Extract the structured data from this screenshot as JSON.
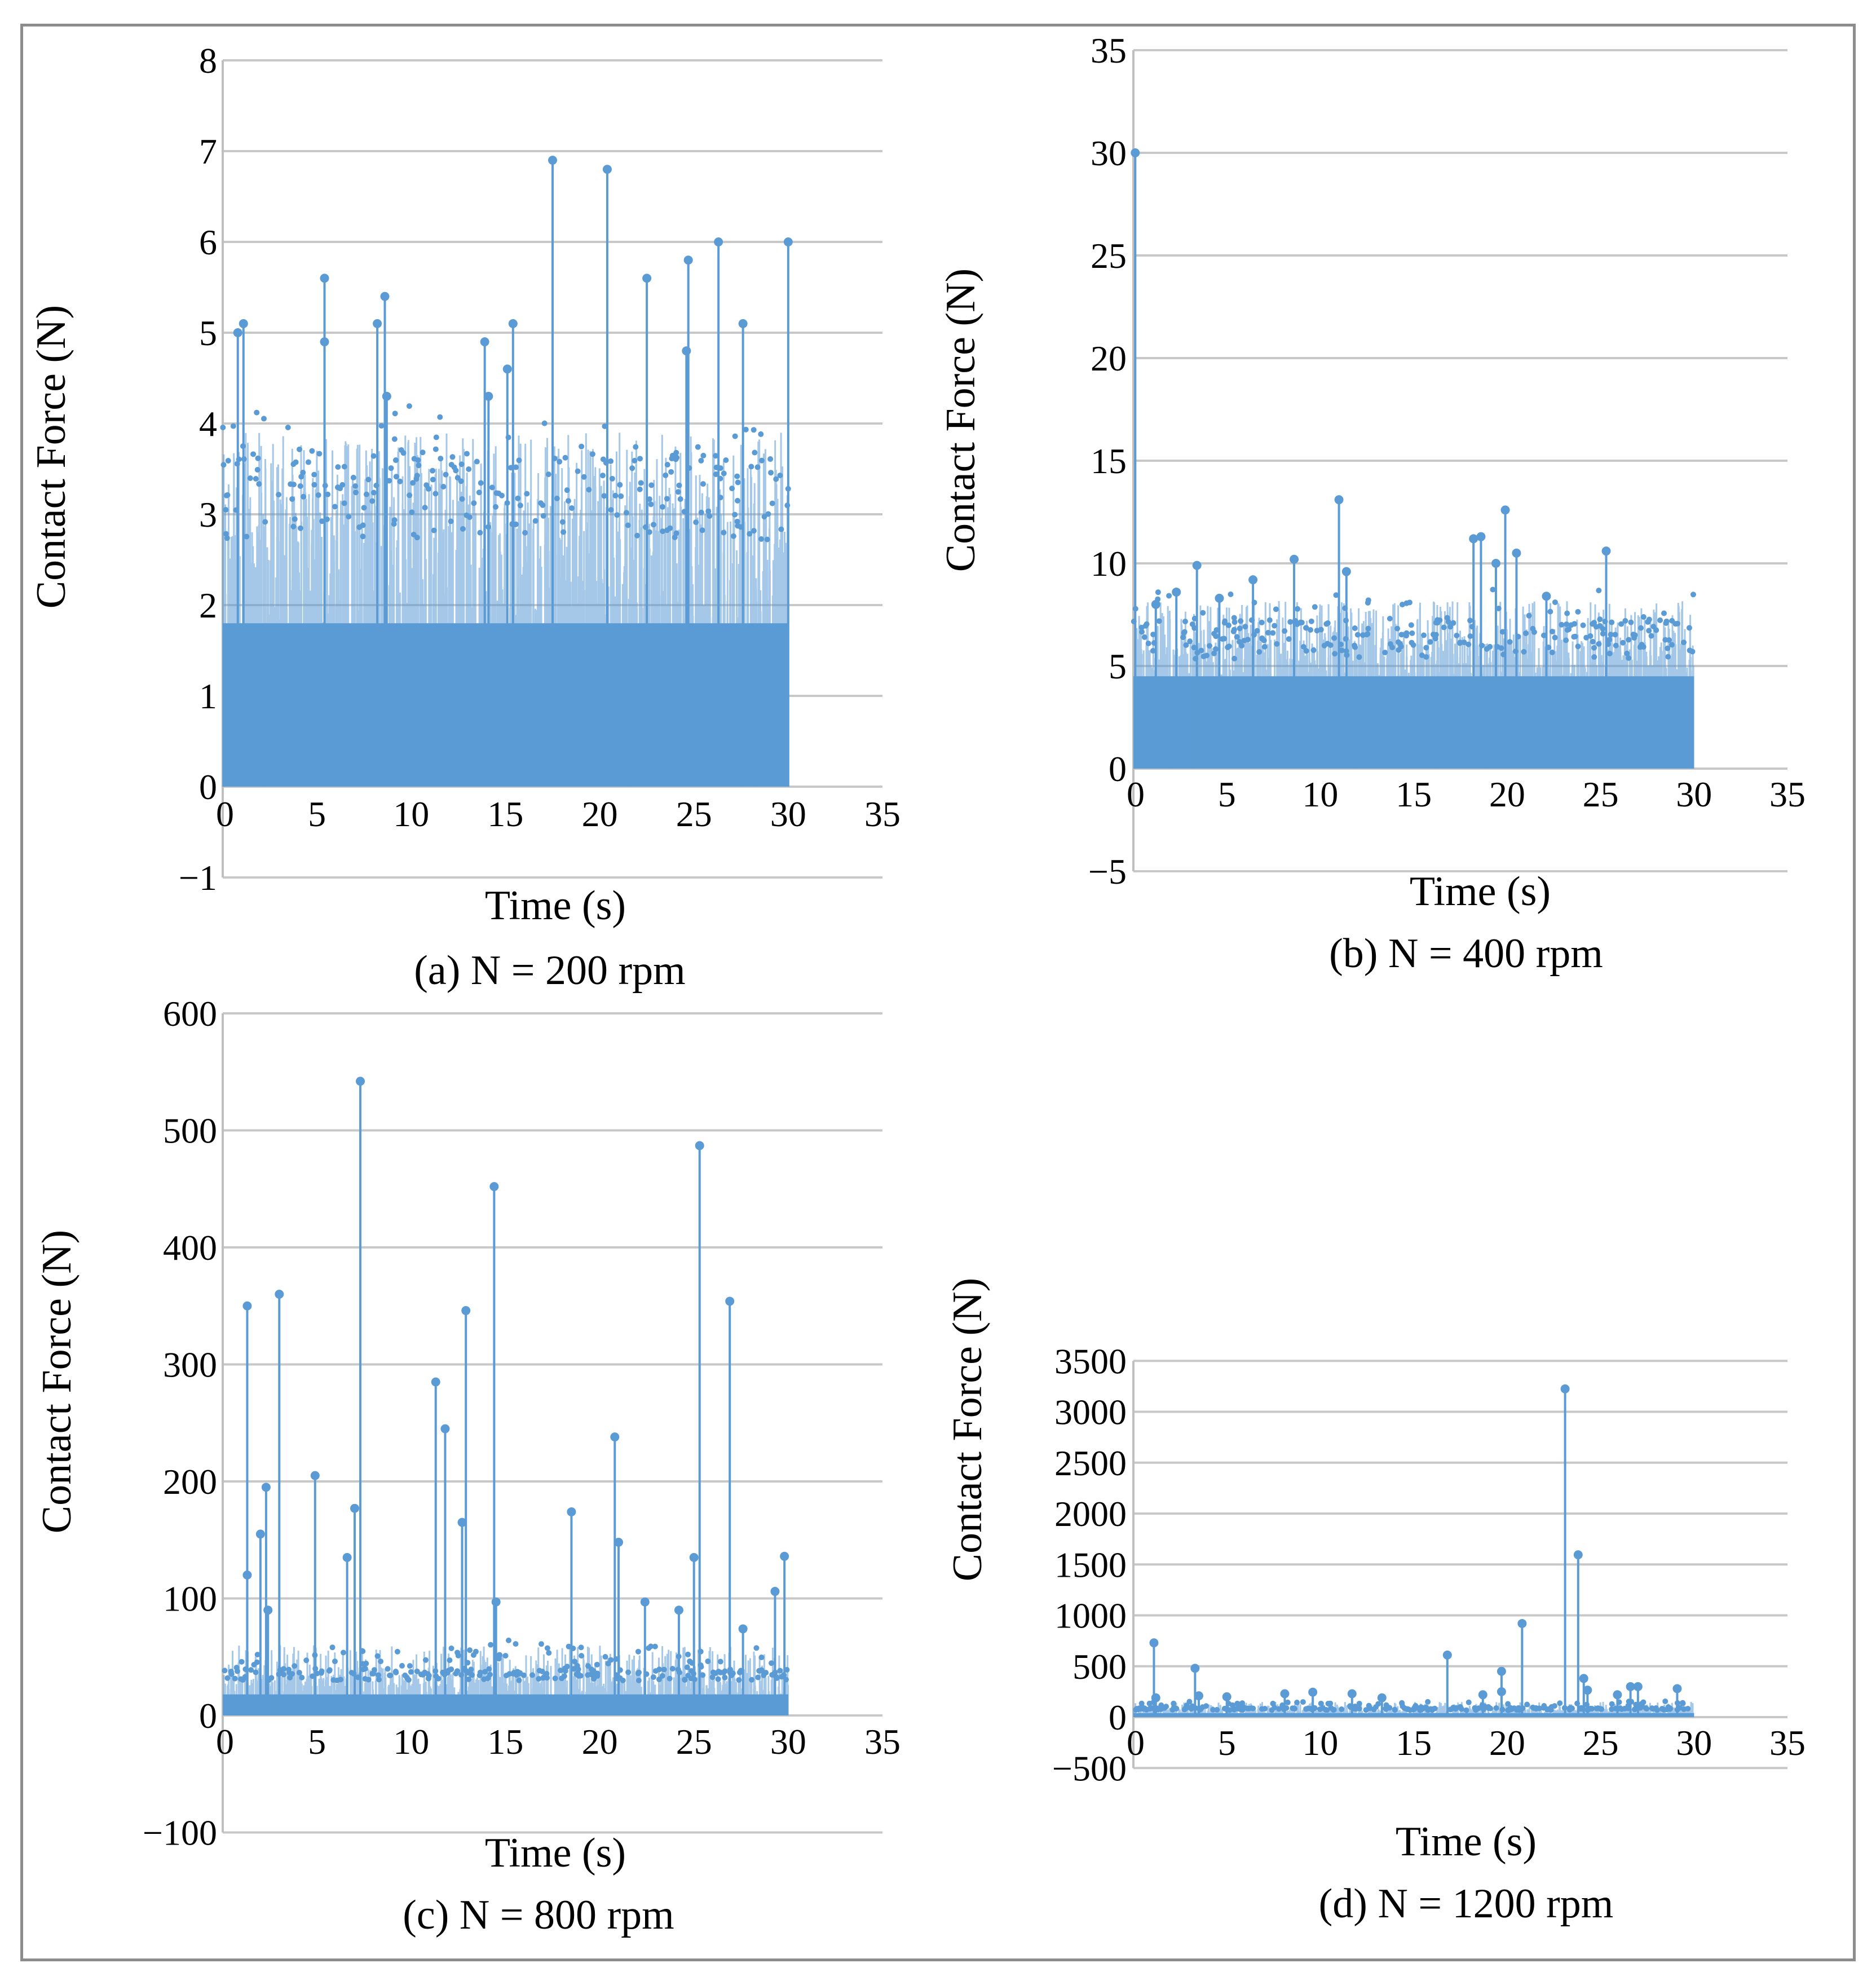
{
  "figure": {
    "description_note": ""
  },
  "colors": {
    "series": "#5b9bd5",
    "grid": "#c8c8c8",
    "frame": "#8c8c8c"
  },
  "chart_data": [
    {
      "id": "a",
      "type": "scatter",
      "title": "(a) N = 200 rpm",
      "xlabel": "Time (s)",
      "ylabel": "Contact Force (N)",
      "xlim": [
        0,
        35
      ],
      "ylim": [
        -1,
        8
      ],
      "xticks": [
        0,
        5,
        10,
        15,
        20,
        25,
        30,
        35
      ],
      "yticks": [
        -1,
        0,
        1,
        2,
        3,
        4,
        5,
        6,
        7,
        8
      ],
      "xtick_labels": [
        "0",
        "5",
        "10",
        "15",
        "20",
        "25",
        "30",
        "35"
      ],
      "ytick_labels": [
        "−1",
        "0",
        "1",
        "2",
        "3",
        "4",
        "5",
        "6",
        "7",
        "8"
      ],
      "dense_band": {
        "x_range": [
          0,
          30
        ],
        "band_top": 1.8,
        "dense_upper": 3.2,
        "sparse_upper": 3.9
      },
      "peaks": [
        {
          "x": 0.8,
          "y": 5.0
        },
        {
          "x": 1.1,
          "y": 5.1
        },
        {
          "x": 5.4,
          "y": 5.6
        },
        {
          "x": 5.4,
          "y": 4.9
        },
        {
          "x": 8.2,
          "y": 5.1
        },
        {
          "x": 8.6,
          "y": 5.4
        },
        {
          "x": 8.7,
          "y": 4.3
        },
        {
          "x": 13.9,
          "y": 4.9
        },
        {
          "x": 14.1,
          "y": 4.3
        },
        {
          "x": 15.1,
          "y": 4.6
        },
        {
          "x": 15.4,
          "y": 5.1
        },
        {
          "x": 17.5,
          "y": 6.9
        },
        {
          "x": 20.4,
          "y": 6.8
        },
        {
          "x": 22.5,
          "y": 5.6
        },
        {
          "x": 24.7,
          "y": 5.8
        },
        {
          "x": 24.6,
          "y": 4.8
        },
        {
          "x": 26.3,
          "y": 6.0
        },
        {
          "x": 27.6,
          "y": 5.1
        },
        {
          "x": 30.0,
          "y": 6.0
        }
      ]
    },
    {
      "id": "b",
      "type": "scatter",
      "title": "(b) N = 400 rpm",
      "xlabel": "Time (s)",
      "ylabel": "Contact Force (N)",
      "xlim": [
        0,
        35
      ],
      "ylim": [
        -5,
        35
      ],
      "xticks": [
        0,
        5,
        10,
        15,
        20,
        25,
        30,
        35
      ],
      "yticks": [
        -5,
        0,
        5,
        10,
        15,
        20,
        25,
        30,
        35
      ],
      "xtick_labels": [
        "0",
        "5",
        "10",
        "15",
        "20",
        "25",
        "30",
        "35"
      ],
      "ytick_labels": [
        "−5",
        "0",
        "5",
        "10",
        "15",
        "20",
        "25",
        "30",
        "35"
      ],
      "dense_band": {
        "x_range": [
          0,
          30
        ],
        "band_top": 4.5,
        "dense_upper": 6.3,
        "sparse_upper": 8.2
      },
      "peaks": [
        {
          "x": 0.1,
          "y": 30.0
        },
        {
          "x": 1.2,
          "y": 8.0
        },
        {
          "x": 2.3,
          "y": 8.6
        },
        {
          "x": 3.4,
          "y": 9.9
        },
        {
          "x": 4.6,
          "y": 8.3
        },
        {
          "x": 6.4,
          "y": 9.2
        },
        {
          "x": 8.6,
          "y": 10.2
        },
        {
          "x": 11.0,
          "y": 13.1
        },
        {
          "x": 11.4,
          "y": 9.6
        },
        {
          "x": 18.2,
          "y": 11.2
        },
        {
          "x": 18.6,
          "y": 11.3
        },
        {
          "x": 19.4,
          "y": 10.0
        },
        {
          "x": 19.9,
          "y": 12.6
        },
        {
          "x": 20.5,
          "y": 10.5
        },
        {
          "x": 25.3,
          "y": 10.6
        },
        {
          "x": 22.1,
          "y": 8.4
        }
      ]
    },
    {
      "id": "c",
      "type": "scatter",
      "title": "(c) N = 800 rpm",
      "xlabel": "Time (s)",
      "ylabel": "Contact Force (N)",
      "xlim": [
        0,
        35
      ],
      "ylim": [
        -100,
        600
      ],
      "xticks": [
        0,
        5,
        10,
        15,
        20,
        25,
        30,
        35
      ],
      "yticks": [
        -100,
        0,
        100,
        200,
        300,
        400,
        500,
        600
      ],
      "xtick_labels": [
        "0",
        "5",
        "10",
        "15",
        "20",
        "25",
        "30",
        "35"
      ],
      "ytick_labels": [
        "−100",
        "0",
        "100",
        "200",
        "300",
        "400",
        "500",
        "600"
      ],
      "dense_band": {
        "x_range": [
          0,
          30
        ],
        "band_top": 18,
        "dense_upper": 35,
        "sparse_upper": 60
      },
      "peaks": [
        {
          "x": 1.3,
          "y": 350
        },
        {
          "x": 1.3,
          "y": 120
        },
        {
          "x": 2.0,
          "y": 155
        },
        {
          "x": 2.3,
          "y": 195
        },
        {
          "x": 2.4,
          "y": 90
        },
        {
          "x": 3.0,
          "y": 360
        },
        {
          "x": 4.9,
          "y": 205
        },
        {
          "x": 6.6,
          "y": 135
        },
        {
          "x": 7.0,
          "y": 177
        },
        {
          "x": 7.3,
          "y": 542
        },
        {
          "x": 11.3,
          "y": 285
        },
        {
          "x": 11.8,
          "y": 245
        },
        {
          "x": 12.7,
          "y": 165
        },
        {
          "x": 12.9,
          "y": 346
        },
        {
          "x": 14.4,
          "y": 452
        },
        {
          "x": 14.5,
          "y": 97
        },
        {
          "x": 18.5,
          "y": 174
        },
        {
          "x": 20.8,
          "y": 238
        },
        {
          "x": 21.0,
          "y": 148
        },
        {
          "x": 22.4,
          "y": 97
        },
        {
          "x": 24.2,
          "y": 90
        },
        {
          "x": 25.0,
          "y": 135
        },
        {
          "x": 25.3,
          "y": 487
        },
        {
          "x": 26.9,
          "y": 354
        },
        {
          "x": 27.6,
          "y": 74
        },
        {
          "x": 29.3,
          "y": 106
        },
        {
          "x": 29.8,
          "y": 136
        }
      ]
    },
    {
      "id": "d",
      "type": "scatter",
      "title": "(d) N = 1200 rpm",
      "xlabel": "Time (s)",
      "ylabel": "Contact Force (N)",
      "xlim": [
        0,
        35
      ],
      "ylim": [
        -500,
        3500
      ],
      "xticks": [
        0,
        5,
        10,
        15,
        20,
        25,
        30,
        35
      ],
      "yticks": [
        -500,
        0,
        500,
        1000,
        1500,
        2000,
        2500,
        3000,
        3500
      ],
      "xtick_labels": [
        "0",
        "5",
        "10",
        "15",
        "20",
        "25",
        "30",
        "35"
      ],
      "ytick_labels": [
        "−500",
        "0",
        "500",
        "1000",
        "1500",
        "2000",
        "2500",
        "3000",
        "3500"
      ],
      "dense_band": {
        "x_range": [
          0,
          30
        ],
        "band_top": 40,
        "dense_upper": 80,
        "sparse_upper": 150
      },
      "peaks": [
        {
          "x": 1.1,
          "y": 730
        },
        {
          "x": 1.2,
          "y": 190
        },
        {
          "x": 3.3,
          "y": 480
        },
        {
          "x": 3.5,
          "y": 210
        },
        {
          "x": 5.0,
          "y": 200
        },
        {
          "x": 8.1,
          "y": 230
        },
        {
          "x": 9.6,
          "y": 245
        },
        {
          "x": 11.7,
          "y": 230
        },
        {
          "x": 13.3,
          "y": 190
        },
        {
          "x": 16.8,
          "y": 610
        },
        {
          "x": 18.7,
          "y": 220
        },
        {
          "x": 19.7,
          "y": 450
        },
        {
          "x": 19.7,
          "y": 250
        },
        {
          "x": 20.8,
          "y": 920
        },
        {
          "x": 23.1,
          "y": 3225
        },
        {
          "x": 23.8,
          "y": 1595
        },
        {
          "x": 24.1,
          "y": 380
        },
        {
          "x": 24.3,
          "y": 265
        },
        {
          "x": 26.6,
          "y": 300
        },
        {
          "x": 27.0,
          "y": 300
        },
        {
          "x": 29.1,
          "y": 280
        },
        {
          "x": 25.9,
          "y": 220
        }
      ]
    }
  ]
}
